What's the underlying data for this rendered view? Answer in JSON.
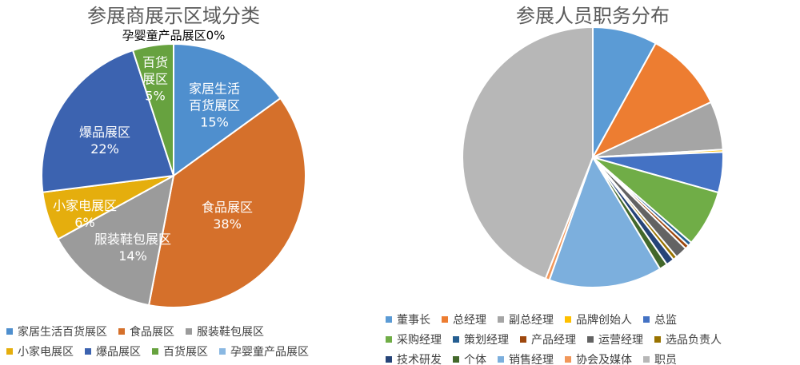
{
  "chart_data": [
    {
      "type": "pie",
      "title": "参展商展示区域分类",
      "categories": [
        "家居生活百货展区",
        "食品展区",
        "服装鞋包展区",
        "小家电展区",
        "爆品展区",
        "百货展区",
        "孕婴童产品展区"
      ],
      "values": [
        15,
        38,
        14,
        6,
        22,
        5,
        0
      ],
      "value_labels": [
        "15%",
        "38%",
        "14%",
        "6%",
        "22%",
        "5%",
        "0%"
      ],
      "colors": [
        "#4f8fce",
        "#d5702b",
        "#9b9b9b",
        "#e5ae0d",
        "#3c63b0",
        "#67a23f",
        "#8ab8e2"
      ],
      "legend": "bottom"
    },
    {
      "type": "pie",
      "title": "参展人员职务分布",
      "categories": [
        "董事长",
        "总经理",
        "副总经理",
        "品牌创始人",
        "总监",
        "采购经理",
        "策划经理",
        "产品经理",
        "运营经理",
        "选品负责人",
        "技术研发",
        "个体",
        "销售经理",
        "协会及媒体",
        "职员"
      ],
      "values": [
        8,
        10,
        6,
        0.3,
        5,
        7,
        0.5,
        0.5,
        1.5,
        0.5,
        1,
        1,
        14,
        0.5,
        44
      ],
      "colors": [
        "#5b9bd5",
        "#ed7d31",
        "#a5a5a5",
        "#ffc000",
        "#4472c4",
        "#70ad47",
        "#255e91",
        "#9e480e",
        "#636363",
        "#997300",
        "#264478",
        "#43682b",
        "#7cafdd",
        "#f1975a",
        "#b7b7b7"
      ],
      "legend": "bottom"
    }
  ]
}
